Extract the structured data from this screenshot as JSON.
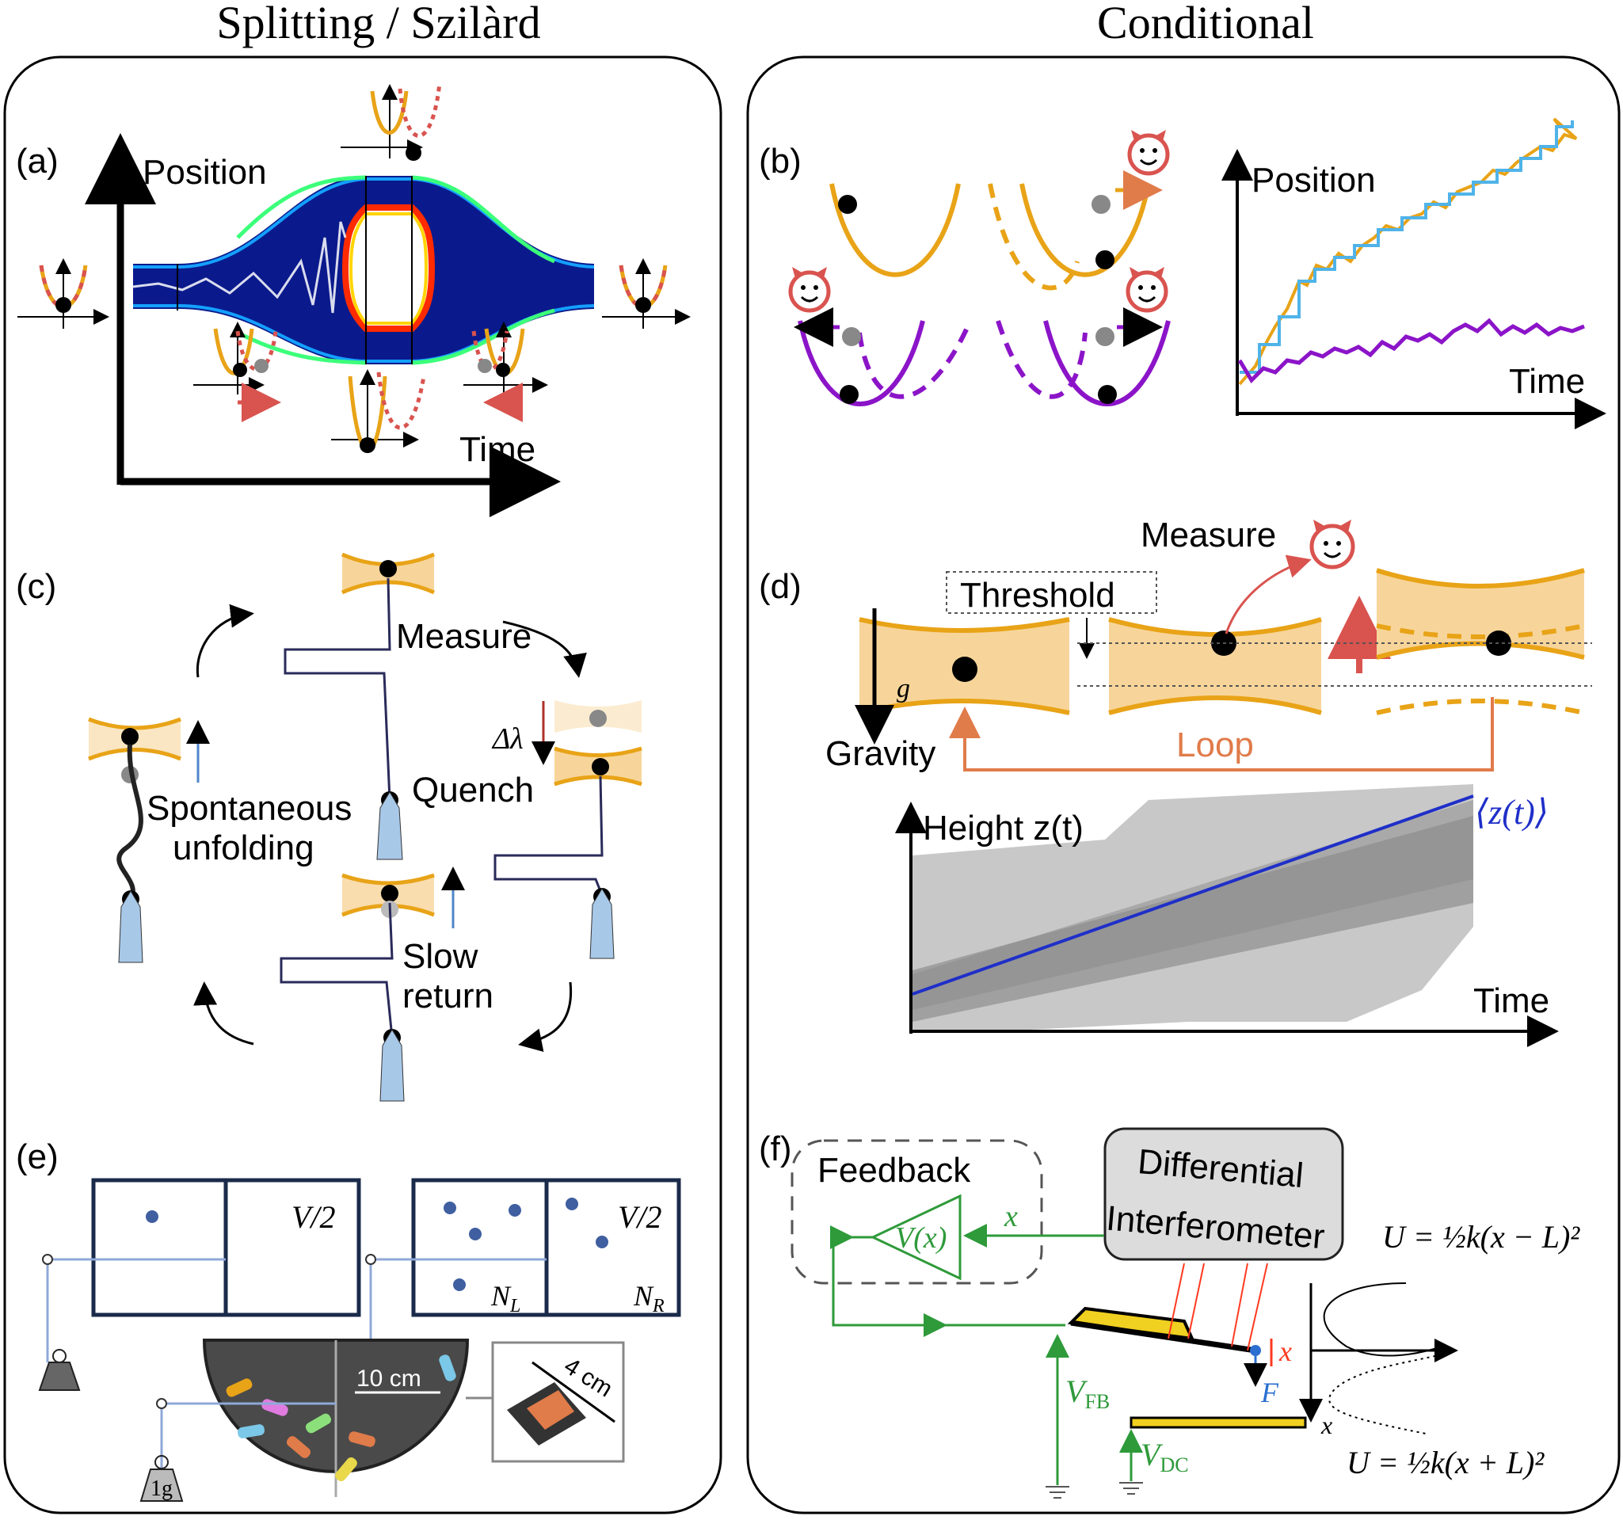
{
  "headers": {
    "left": "Splitting / Szilàrd",
    "right": "Conditional"
  },
  "panels": {
    "a": {
      "label": "(a)",
      "y_axis": "Position",
      "x_axis": "Time"
    },
    "b": {
      "label": "(b)",
      "y_axis": "Position",
      "x_axis": "Time"
    },
    "c": {
      "label": "(c)",
      "measure": "Measure",
      "delta": "Δλ",
      "quench": "Quench",
      "spont1": "Spontaneous",
      "spont2": "unfolding",
      "slow1": "Slow",
      "slow2": "return"
    },
    "d": {
      "label": "(d)",
      "measure": "Measure",
      "threshold": "Threshold",
      "gravity": "Gravity",
      "g": "g",
      "loop": "Loop",
      "height": "Height z(t)",
      "mean": "⟨z(t)⟩",
      "x_axis": "Time"
    },
    "e": {
      "label": "(e)",
      "v_half_1": "V/2",
      "v_half_2": "V/2",
      "nl": "N",
      "nl_sub": "L",
      "nr": "N",
      "nr_sub": "R",
      "scale_10cm": "10 cm",
      "scale_4cm": "4 cm",
      "weight": "1g"
    },
    "f": {
      "label": "(f)",
      "feedback": "Feedback",
      "interf1": "Differential",
      "interf2": "Interferometer",
      "vx": "V(x)",
      "x": "x",
      "vfb": "V",
      "vfb_sub": "FB",
      "vdc": "V",
      "vdc_sub": "DC",
      "force": "F",
      "u_top": "U = ½k(x − L)²",
      "u_bot": "U = ½k(x + L)²"
    }
  },
  "colors": {
    "orange": "#E8A317",
    "purple": "#8B14C8",
    "blue_trace": "#4FB3E8",
    "red_arrow": "#D9534F",
    "loop": "#E07B4A",
    "green": "#2E9A3A",
    "mean_line": "#1F2FC8"
  }
}
